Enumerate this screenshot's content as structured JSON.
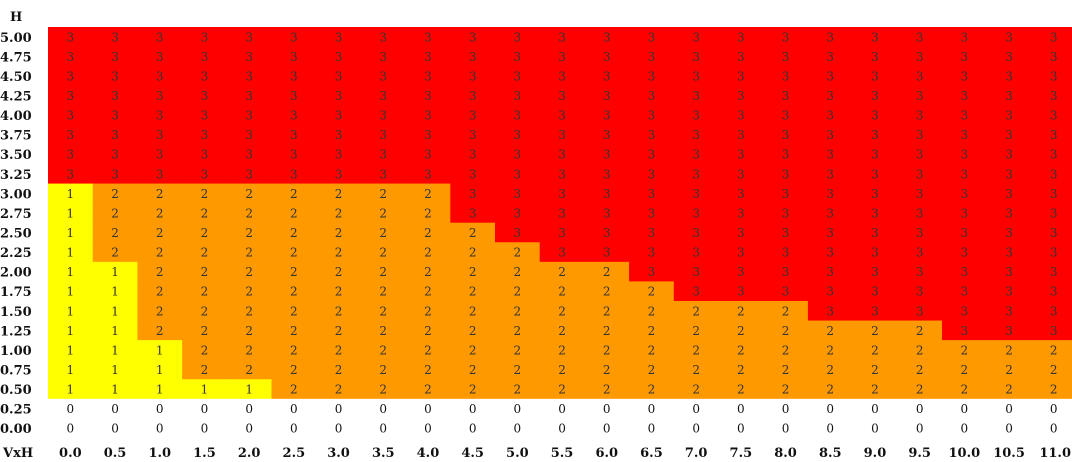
{
  "chart_data": {
    "type": "heatmap",
    "ylabel": "H",
    "xlabel": "VxH",
    "x": [
      "0.0",
      "0.5",
      "1.0",
      "1.5",
      "2.0",
      "2.5",
      "3.0",
      "3.5",
      "4.0",
      "4.5",
      "5.0",
      "5.5",
      "6.0",
      "6.5",
      "7.0",
      "7.5",
      "8.0",
      "8.5",
      "9.0",
      "9.5",
      "10.0",
      "10.5",
      "11.0"
    ],
    "y": [
      "5.00",
      "4.75",
      "4.50",
      "4.25",
      "4.00",
      "3.75",
      "3.50",
      "3.25",
      "3.00",
      "2.75",
      "2.50",
      "2.25",
      "2.00",
      "1.75",
      "1.50",
      "1.25",
      "1.00",
      "0.75",
      "0.50",
      "0.25",
      "0.00"
    ],
    "values": [
      [
        3,
        3,
        3,
        3,
        3,
        3,
        3,
        3,
        3,
        3,
        3,
        3,
        3,
        3,
        3,
        3,
        3,
        3,
        3,
        3,
        3,
        3,
        3
      ],
      [
        3,
        3,
        3,
        3,
        3,
        3,
        3,
        3,
        3,
        3,
        3,
        3,
        3,
        3,
        3,
        3,
        3,
        3,
        3,
        3,
        3,
        3,
        3
      ],
      [
        3,
        3,
        3,
        3,
        3,
        3,
        3,
        3,
        3,
        3,
        3,
        3,
        3,
        3,
        3,
        3,
        3,
        3,
        3,
        3,
        3,
        3,
        3
      ],
      [
        3,
        3,
        3,
        3,
        3,
        3,
        3,
        3,
        3,
        3,
        3,
        3,
        3,
        3,
        3,
        3,
        3,
        3,
        3,
        3,
        3,
        3,
        3
      ],
      [
        3,
        3,
        3,
        3,
        3,
        3,
        3,
        3,
        3,
        3,
        3,
        3,
        3,
        3,
        3,
        3,
        3,
        3,
        3,
        3,
        3,
        3,
        3
      ],
      [
        3,
        3,
        3,
        3,
        3,
        3,
        3,
        3,
        3,
        3,
        3,
        3,
        3,
        3,
        3,
        3,
        3,
        3,
        3,
        3,
        3,
        3,
        3
      ],
      [
        3,
        3,
        3,
        3,
        3,
        3,
        3,
        3,
        3,
        3,
        3,
        3,
        3,
        3,
        3,
        3,
        3,
        3,
        3,
        3,
        3,
        3,
        3
      ],
      [
        3,
        3,
        3,
        3,
        3,
        3,
        3,
        3,
        3,
        3,
        3,
        3,
        3,
        3,
        3,
        3,
        3,
        3,
        3,
        3,
        3,
        3,
        3
      ],
      [
        1,
        2,
        2,
        2,
        2,
        2,
        2,
        2,
        2,
        3,
        3,
        3,
        3,
        3,
        3,
        3,
        3,
        3,
        3,
        3,
        3,
        3,
        3
      ],
      [
        1,
        2,
        2,
        2,
        2,
        2,
        2,
        2,
        2,
        3,
        3,
        3,
        3,
        3,
        3,
        3,
        3,
        3,
        3,
        3,
        3,
        3,
        3
      ],
      [
        1,
        2,
        2,
        2,
        2,
        2,
        2,
        2,
        2,
        2,
        3,
        3,
        3,
        3,
        3,
        3,
        3,
        3,
        3,
        3,
        3,
        3,
        3
      ],
      [
        1,
        2,
        2,
        2,
        2,
        2,
        2,
        2,
        2,
        2,
        2,
        3,
        3,
        3,
        3,
        3,
        3,
        3,
        3,
        3,
        3,
        3,
        3
      ],
      [
        1,
        1,
        2,
        2,
        2,
        2,
        2,
        2,
        2,
        2,
        2,
        2,
        2,
        3,
        3,
        3,
        3,
        3,
        3,
        3,
        3,
        3,
        3
      ],
      [
        1,
        1,
        2,
        2,
        2,
        2,
        2,
        2,
        2,
        2,
        2,
        2,
        2,
        2,
        3,
        3,
        3,
        3,
        3,
        3,
        3,
        3,
        3
      ],
      [
        1,
        1,
        2,
        2,
        2,
        2,
        2,
        2,
        2,
        2,
        2,
        2,
        2,
        2,
        2,
        2,
        2,
        3,
        3,
        3,
        3,
        3,
        3
      ],
      [
        1,
        1,
        2,
        2,
        2,
        2,
        2,
        2,
        2,
        2,
        2,
        2,
        2,
        2,
        2,
        2,
        2,
        2,
        2,
        2,
        3,
        3,
        3
      ],
      [
        1,
        1,
        1,
        2,
        2,
        2,
        2,
        2,
        2,
        2,
        2,
        2,
        2,
        2,
        2,
        2,
        2,
        2,
        2,
        2,
        2,
        2,
        2
      ],
      [
        1,
        1,
        1,
        2,
        2,
        2,
        2,
        2,
        2,
        2,
        2,
        2,
        2,
        2,
        2,
        2,
        2,
        2,
        2,
        2,
        2,
        2,
        2
      ],
      [
        1,
        1,
        1,
        1,
        1,
        2,
        2,
        2,
        2,
        2,
        2,
        2,
        2,
        2,
        2,
        2,
        2,
        2,
        2,
        2,
        2,
        2,
        2
      ],
      [
        0,
        0,
        0,
        0,
        0,
        0,
        0,
        0,
        0,
        0,
        0,
        0,
        0,
        0,
        0,
        0,
        0,
        0,
        0,
        0,
        0,
        0,
        0
      ],
      [
        0,
        0,
        0,
        0,
        0,
        0,
        0,
        0,
        0,
        0,
        0,
        0,
        0,
        0,
        0,
        0,
        0,
        0,
        0,
        0,
        0,
        0,
        0
      ]
    ],
    "colors": {
      "0": "#ffffff",
      "1": "#ffff00",
      "2": "#ff9900",
      "3": "#ff0000"
    },
    "grid": false,
    "legend": "none"
  }
}
